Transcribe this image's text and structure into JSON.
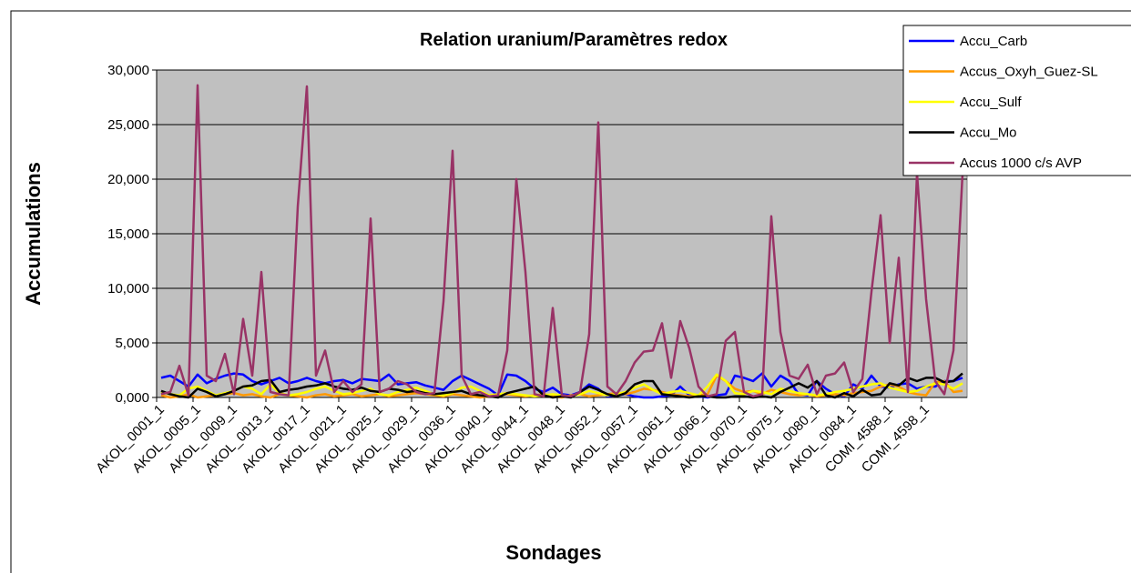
{
  "chart_data": {
    "type": "line",
    "title": "Relation uranium/Paramètres redox",
    "x_label": "Sondages",
    "y_label": "Accumulations",
    "categories": [
      "AKOL_0001_1",
      null,
      null,
      null,
      "AKOL_0005_1",
      null,
      null,
      null,
      "AKOL_0009_1",
      null,
      null,
      null,
      "AKOL_0013_1",
      null,
      null,
      null,
      "AKOL_0017_1",
      null,
      null,
      null,
      "AKOL_0021_1",
      null,
      null,
      null,
      "AKOL_0025_1",
      null,
      null,
      null,
      "AKOL_0029_1",
      null,
      null,
      null,
      "AKOL_0036_1",
      null,
      null,
      null,
      "AKOL_0040_1",
      null,
      null,
      null,
      "AKOL_0044_1",
      null,
      null,
      null,
      "AKOL_0048_1",
      null,
      null,
      null,
      "AKOL_0052_1",
      null,
      null,
      null,
      "AKOL_0057_1",
      null,
      null,
      null,
      "AKOL_0061_1",
      null,
      null,
      null,
      "AKOL_0066_1",
      null,
      null,
      null,
      "AKOL_0070_1",
      null,
      null,
      null,
      "AKOL_0075_1",
      null,
      null,
      null,
      "AKOL_0080_1",
      null,
      null,
      null,
      "AKOL_0084_1",
      null,
      null,
      null,
      "COMI_4588_1",
      null,
      null,
      null,
      "COMI_4598_1",
      null,
      null,
      null,
      null
    ],
    "ylim": [
      0,
      30000
    ],
    "yticks": [
      {
        "value": 0,
        "label": "0,000"
      },
      {
        "value": 5000,
        "label": "5,000"
      },
      {
        "value": 10000,
        "label": "10,000"
      },
      {
        "value": 15000,
        "label": "15,000"
      },
      {
        "value": 20000,
        "label": "20,000"
      },
      {
        "value": 25000,
        "label": "25,000"
      },
      {
        "value": 30000,
        "label": "30,000"
      }
    ],
    "grid": true,
    "legend": "top-right",
    "plot_background": "#c0c0c0",
    "series": [
      {
        "name": "Accu_Carb",
        "color": "#0000ff",
        "values": [
          1800,
          2000,
          1500,
          1000,
          2100,
          1300,
          1700,
          2000,
          2200,
          2100,
          1500,
          1200,
          1500,
          1800,
          1300,
          1500,
          1800,
          1500,
          1300,
          1500,
          1600,
          1300,
          1700,
          1600,
          1500,
          2100,
          1200,
          1300,
          1400,
          1100,
          900,
          700,
          1500,
          2000,
          1600,
          1200,
          800,
          200,
          2100,
          2000,
          1500,
          800,
          500,
          900,
          300,
          200,
          500,
          1200,
          800,
          100,
          200,
          300,
          100,
          0,
          0,
          100,
          200,
          1000,
          200,
          100,
          0,
          200,
          300,
          2000,
          1800,
          1500,
          2200,
          1000,
          2000,
          1500,
          300,
          200,
          1500,
          800,
          300,
          100,
          1200,
          800,
          2000,
          1000,
          900,
          1200,
          1300,
          800,
          1000,
          1000,
          1500,
          1500,
          1800
        ]
      },
      {
        "name": "Accus_Oxyh_Guez-SL",
        "color": "#ff9900",
        "values": [
          200,
          0,
          100,
          300,
          0,
          100,
          200,
          300,
          400,
          200,
          300,
          100,
          0,
          300,
          200,
          100,
          0,
          200,
          300,
          100,
          200,
          300,
          100,
          200,
          300,
          100,
          200,
          300,
          400,
          300,
          200,
          100,
          300,
          200,
          100,
          0,
          100,
          200,
          300,
          200,
          100,
          200,
          300,
          100,
          0,
          200,
          300,
          100,
          200,
          300,
          400,
          300,
          500,
          800,
          700,
          500,
          300,
          200,
          100,
          200,
          300,
          2000,
          1500,
          800,
          500,
          600,
          300,
          700,
          500,
          300,
          200,
          300,
          100,
          200,
          300,
          200,
          400,
          500,
          600,
          1000,
          1200,
          1000,
          500,
          300,
          200,
          1400,
          1500,
          500,
          600
        ]
      },
      {
        "name": "Accu_Sulf",
        "color": "#ffff00",
        "values": [
          500,
          300,
          200,
          800,
          1000,
          600,
          200,
          400,
          600,
          1000,
          800,
          300,
          1200,
          400,
          200,
          300,
          500,
          800,
          1000,
          600,
          300,
          400,
          600,
          800,
          300,
          200,
          500,
          700,
          900,
          600,
          300,
          200,
          400,
          900,
          1000,
          600,
          200,
          300,
          400,
          300,
          200,
          100,
          200,
          300,
          200,
          100,
          300,
          600,
          400,
          200,
          300,
          500,
          900,
          1200,
          700,
          300,
          500,
          600,
          400,
          200,
          1000,
          2100,
          1500,
          400,
          300,
          600,
          500,
          300,
          800,
          600,
          400,
          300,
          200,
          300,
          500,
          600,
          800,
          1000,
          1200,
          1300,
          900,
          700,
          500,
          600,
          1000,
          1300,
          1200,
          800,
          1300
        ]
      },
      {
        "name": "Accu_Mo",
        "color": "#000000",
        "values": [
          600,
          300,
          100,
          0,
          800,
          500,
          100,
          300,
          600,
          1000,
          1100,
          1500,
          1600,
          500,
          700,
          800,
          1000,
          1100,
          1300,
          1000,
          800,
          700,
          900,
          600,
          500,
          800,
          700,
          500,
          600,
          400,
          300,
          400,
          500,
          600,
          300,
          200,
          100,
          0,
          400,
          600,
          800,
          1000,
          200,
          0,
          100,
          0,
          500,
          1000,
          700,
          300,
          100,
          400,
          1200,
          1500,
          1500,
          300,
          200,
          100,
          0,
          100,
          100,
          0,
          0,
          100,
          100,
          0,
          100,
          0,
          500,
          900,
          1300,
          900,
          1500,
          200,
          0,
          400,
          100,
          700,
          200,
          300,
          1300,
          1100,
          1800,
          1500,
          1800,
          1800,
          1400,
          1500,
          2200
        ]
      },
      {
        "name": "Accus 1000 c/s AVP",
        "color": "#993366",
        "values": [
          300,
          500,
          2900,
          200,
          28600,
          2000,
          1500,
          4000,
          300,
          7200,
          2000,
          11500,
          500,
          300,
          200,
          17500,
          28500,
          2000,
          4300,
          500,
          1500,
          500,
          1200,
          16400,
          500,
          800,
          1500,
          1200,
          500,
          300,
          400,
          8800,
          22600,
          2000,
          300,
          500,
          100,
          200,
          4300,
          20000,
          11500,
          300,
          100,
          8200,
          200,
          100,
          500,
          5800,
          25200,
          1000,
          300,
          1500,
          3200,
          4200,
          4300,
          6800,
          1800,
          7000,
          4500,
          1000,
          100,
          300,
          5200,
          6000,
          500,
          100,
          300,
          16600,
          6000,
          2000,
          1700,
          3000,
          300,
          2000,
          2200,
          3200,
          500,
          1700,
          9700,
          16700,
          5000,
          12800,
          500,
          20500,
          9000,
          1500,
          300,
          4300,
          20500
        ]
      }
    ]
  }
}
